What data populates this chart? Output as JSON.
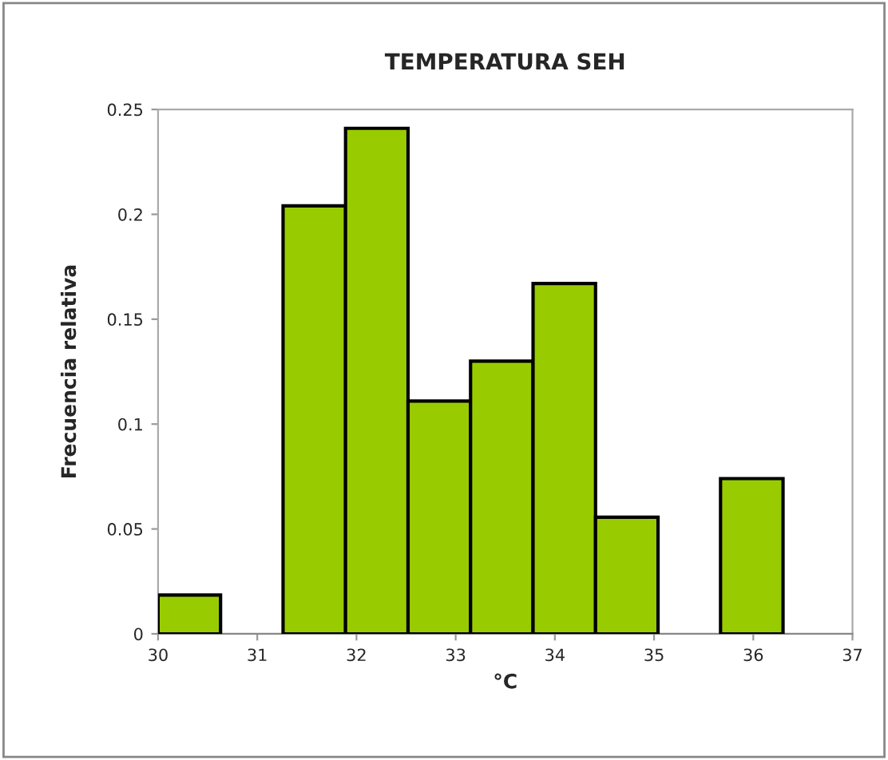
{
  "chart_data": {
    "type": "histogram",
    "title": "TEMPERATURA SEH",
    "xlabel": "°C",
    "ylabel": "Frecuencia relativa",
    "bins": [
      30,
      30.63,
      31.26,
      31.89,
      32.52,
      33.15,
      33.78,
      34.41,
      35.04,
      35.67,
      36.3,
      36.93
    ],
    "values": [
      0.0185,
      0,
      0.204,
      0.241,
      0.111,
      0.13,
      0.167,
      0.0556,
      0,
      0.074,
      0
    ],
    "color": "#99cc00",
    "xlim": [
      30,
      37
    ],
    "xticks": [
      30,
      31,
      32,
      33,
      34,
      35,
      36,
      37
    ],
    "ylim": [
      0,
      0.25
    ],
    "yticks": [
      0,
      0.05,
      0.1,
      0.15,
      0.2,
      0.25
    ],
    "grid": false
  }
}
